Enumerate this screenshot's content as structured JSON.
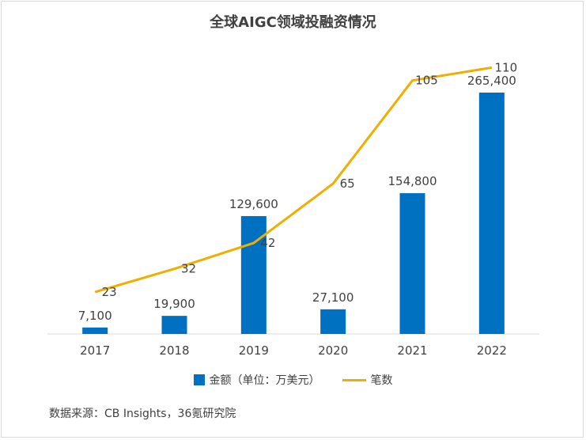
{
  "chart_data": {
    "type": "bar",
    "title": "全球AIGC领域投融资情况",
    "categories": [
      "2017",
      "2018",
      "2019",
      "2020",
      "2021",
      "2022"
    ],
    "series": [
      {
        "name": "金额（单位：万美元）",
        "type": "bar",
        "color": "#0070c0",
        "values": [
          7100,
          19900,
          129600,
          27100,
          154800,
          265400
        ],
        "labels": [
          "7,100",
          "19,900",
          "129,600",
          "27,100",
          "154,800",
          "265,400"
        ]
      },
      {
        "name": "笔数",
        "type": "line",
        "color": "#f0ae00",
        "values": [
          23,
          32,
          42,
          65,
          105,
          110
        ],
        "labels": [
          "23",
          "32",
          "42",
          "65",
          "105",
          "110"
        ]
      }
    ]
  },
  "source": "数据来源：CB Insights，36氪研究院"
}
